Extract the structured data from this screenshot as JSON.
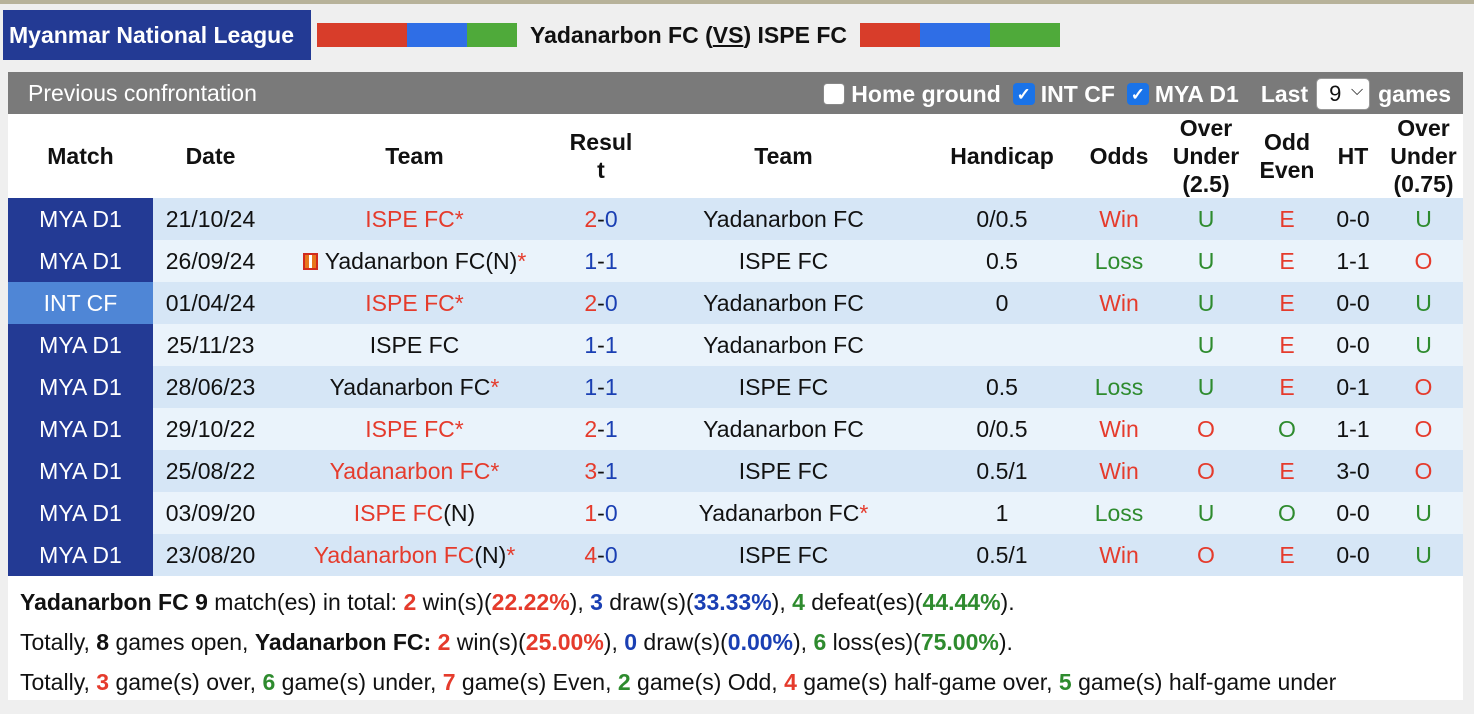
{
  "header": {
    "league": "Myanmar National League",
    "home_team": "Yadanarbon FC",
    "vs": "VS",
    "away_team": "ISPE FC"
  },
  "panel": {
    "title": "Previous confrontation",
    "filters": {
      "home_ground": {
        "label": "Home ground",
        "checked": false
      },
      "int_cf": {
        "label": "INT CF",
        "checked": true
      },
      "mya_d1": {
        "label": "MYA D1",
        "checked": true
      },
      "last_label": "Last",
      "last_value": "9",
      "games_label": "games"
    }
  },
  "columns": {
    "match": "Match",
    "date": "Date",
    "team1": "Team",
    "result_a": "Resul",
    "result_b": "t",
    "team2": "Team",
    "handicap": "Handicap",
    "odds": "Odds",
    "ou1_a": "Over",
    "ou1_b": "Under",
    "ou1_c": "(2.5)",
    "oe_a": "Odd",
    "oe_b": "Even",
    "ht": "HT",
    "ou2_a": "Over",
    "ou2_b": "Under",
    "ou2_c": "(0.75)"
  },
  "matches": [
    {
      "league": "MYA D1",
      "date": "21/10/24",
      "home": "ISPE FC",
      "home_suffix": "*",
      "home_color": "red",
      "home_flag": false,
      "home_n": "",
      "score_home": "2",
      "score_away": "0",
      "score_home_color": "red",
      "score_away_color": "blue",
      "away": "Yadanarbon FC",
      "away_suffix": "",
      "handicap": "0/0.5",
      "odds": "Win",
      "ou": "U",
      "oe": "E",
      "ht": "0-0",
      "ou2": "U"
    },
    {
      "league": "MYA D1",
      "date": "26/09/24",
      "home": "Yadanarbon FC",
      "home_suffix": "*",
      "home_color": "black",
      "home_flag": true,
      "home_n": "(N)",
      "score_home": "1",
      "score_away": "1",
      "score_home_color": "blue",
      "score_away_color": "blue",
      "away": "ISPE FC",
      "away_suffix": "",
      "handicap": "0.5",
      "odds": "Loss",
      "ou": "U",
      "oe": "E",
      "ht": "1-1",
      "ou2": "O"
    },
    {
      "league": "INT CF",
      "date": "01/04/24",
      "home": "ISPE FC",
      "home_suffix": "*",
      "home_color": "red",
      "home_flag": false,
      "home_n": "",
      "score_home": "2",
      "score_away": "0",
      "score_home_color": "red",
      "score_away_color": "blue",
      "away": "Yadanarbon FC",
      "away_suffix": "",
      "handicap": "0",
      "odds": "Win",
      "ou": "U",
      "oe": "E",
      "ht": "0-0",
      "ou2": "U"
    },
    {
      "league": "MYA D1",
      "date": "25/11/23",
      "home": "ISPE FC",
      "home_suffix": "",
      "home_color": "black",
      "home_flag": false,
      "home_n": "",
      "score_home": "1",
      "score_away": "1",
      "score_home_color": "blue",
      "score_away_color": "blue",
      "away": "Yadanarbon FC",
      "away_suffix": "",
      "handicap": "",
      "odds": "",
      "ou": "U",
      "oe": "E",
      "ht": "0-0",
      "ou2": "U"
    },
    {
      "league": "MYA D1",
      "date": "28/06/23",
      "home": "Yadanarbon FC",
      "home_suffix": "*",
      "home_color": "black",
      "home_flag": false,
      "home_n": "",
      "score_home": "1",
      "score_away": "1",
      "score_home_color": "blue",
      "score_away_color": "blue",
      "away": "ISPE FC",
      "away_suffix": "",
      "handicap": "0.5",
      "odds": "Loss",
      "ou": "U",
      "oe": "E",
      "ht": "0-1",
      "ou2": "O"
    },
    {
      "league": "MYA D1",
      "date": "29/10/22",
      "home": "ISPE FC",
      "home_suffix": "*",
      "home_color": "red",
      "home_flag": false,
      "home_n": "",
      "score_home": "2",
      "score_away": "1",
      "score_home_color": "red",
      "score_away_color": "blue",
      "away": "Yadanarbon FC",
      "away_suffix": "",
      "handicap": "0/0.5",
      "odds": "Win",
      "ou": "O",
      "oe": "O",
      "ht": "1-1",
      "ou2": "O"
    },
    {
      "league": "MYA D1",
      "date": "25/08/22",
      "home": "Yadanarbon FC",
      "home_suffix": "*",
      "home_color": "red",
      "home_flag": false,
      "home_n": "",
      "score_home": "3",
      "score_away": "1",
      "score_home_color": "red",
      "score_away_color": "blue",
      "away": "ISPE FC",
      "away_suffix": "",
      "handicap": "0.5/1",
      "odds": "Win",
      "ou": "O",
      "oe": "E",
      "ht": "3-0",
      "ou2": "O"
    },
    {
      "league": "MYA D1",
      "date": "03/09/20",
      "home": "ISPE FC",
      "home_suffix": "",
      "home_color": "red",
      "home_flag": false,
      "home_n": "(N)",
      "score_home": "1",
      "score_away": "0",
      "score_home_color": "red",
      "score_away_color": "blue",
      "away": "Yadanarbon FC",
      "away_suffix": "*",
      "handicap": "1",
      "odds": "Loss",
      "ou": "U",
      "oe": "O",
      "ht": "0-0",
      "ou2": "U"
    },
    {
      "league": "MYA D1",
      "date": "23/08/20",
      "home": "Yadanarbon FC",
      "home_suffix": "*",
      "home_color": "red",
      "home_flag": false,
      "home_n": "(N)",
      "score_home": "4",
      "score_away": "0",
      "score_home_color": "red",
      "score_away_color": "blue",
      "away": "ISPE FC",
      "away_suffix": "",
      "handicap": "0.5/1",
      "odds": "Win",
      "ou": "O",
      "oe": "E",
      "ht": "0-0",
      "ou2": "U"
    }
  ],
  "summary": {
    "line1": {
      "team": "Yadanarbon FC",
      "total": "9",
      "t1": " match(es) in total: ",
      "wins": "2",
      "t2": " win(s)(",
      "win_pct": "22.22%",
      "t3": "), ",
      "draws": "3",
      "t4": " draw(s)(",
      "draw_pct": "33.33%",
      "t5": "), ",
      "defeats": "4",
      "t6": " defeat(es)(",
      "defeat_pct": "44.44%",
      "t7": ")."
    },
    "line2": {
      "t0": "Totally, ",
      "open": "8",
      "t1": " games open, ",
      "team": "Yadanarbon FC:",
      "t1b": " ",
      "wins": "2",
      "t2": " win(s)(",
      "win_pct": "25.00%",
      "t3": "), ",
      "draws": "0",
      "t4": " draw(s)(",
      "draw_pct": "0.00%",
      "t5": "), ",
      "losses": "6",
      "t6": " loss(es)(",
      "loss_pct": "75.00%",
      "t7": ")."
    },
    "line3": {
      "t0": "Totally, ",
      "over": "3",
      "t1": " game(s) over, ",
      "under": "6",
      "t2": " game(s) under, ",
      "even": "7",
      "t3": " game(s) Even, ",
      "odd": "2",
      "t4": " game(s) Odd, ",
      "hg_over": "4",
      "t5": " game(s) half-game over, ",
      "hg_under": "5",
      "t6": " game(s) half-game under"
    }
  },
  "colors": {
    "league_bg": "#233a94",
    "int_cf_bg": "#4f86d6",
    "win": "#e53b2c",
    "draw": "#1a3fb3",
    "loss": "#2e8b2e"
  }
}
